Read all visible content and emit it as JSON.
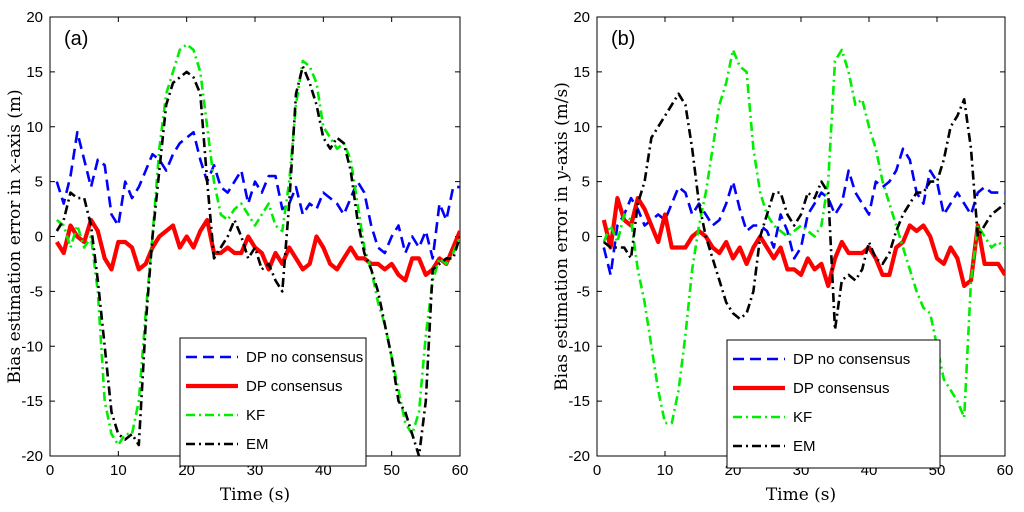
{
  "chart_data": [
    {
      "type": "line",
      "panel_label": "(a)",
      "xlabel": "Time (s)",
      "ylabel_parts": [
        "Bias estimation error in ",
        "x",
        "-axis (m)"
      ],
      "xlim": [
        0,
        60
      ],
      "ylim": [
        -20,
        20
      ],
      "xticks": [
        0,
        10,
        20,
        30,
        40,
        50,
        60
      ],
      "yticks": [
        -20,
        -15,
        -10,
        -5,
        0,
        5,
        10,
        15,
        20
      ],
      "legend_position": "bottom-right",
      "series": [
        {
          "name": "DP no consensus",
          "color": "#0000ff",
          "style": "dashed",
          "x": [
            1,
            2,
            3,
            4,
            5,
            6,
            7,
            8,
            9,
            10,
            11,
            12,
            13,
            14,
            15,
            16,
            17,
            18,
            19,
            20,
            21,
            22,
            23,
            24,
            25,
            26,
            27,
            28,
            29,
            30,
            31,
            32,
            33,
            34,
            35,
            36,
            37,
            38,
            39,
            40,
            41,
            42,
            43,
            44,
            45,
            46,
            47,
            48,
            49,
            50,
            51,
            52,
            53,
            54,
            55,
            56,
            57,
            58,
            59,
            60
          ],
          "y": [
            5,
            3,
            5.5,
            9.5,
            7,
            4.5,
            7,
            6.5,
            2,
            1,
            5,
            3.5,
            4.5,
            6,
            7.5,
            7,
            6,
            7.5,
            8.5,
            9,
            9.5,
            7,
            5,
            6.5,
            4.5,
            4,
            5,
            6,
            3,
            5,
            4,
            5.5,
            5.5,
            2.5,
            3,
            4.5,
            2,
            3,
            2.5,
            4,
            3.5,
            3,
            2,
            3.5,
            5,
            4,
            1,
            -1,
            -1.5,
            0,
            1,
            -1.5,
            0,
            -1,
            0.5,
            -2,
            3,
            1.5,
            4.5,
            4.5
          ]
        },
        {
          "name": "DP consensus",
          "color": "#ff0000",
          "style": "solid",
          "x": [
            1,
            2,
            3,
            4,
            5,
            6,
            7,
            8,
            9,
            10,
            11,
            12,
            13,
            14,
            15,
            16,
            17,
            18,
            19,
            20,
            21,
            22,
            23,
            24,
            25,
            26,
            27,
            28,
            29,
            30,
            31,
            32,
            33,
            34,
            35,
            36,
            37,
            38,
            39,
            40,
            41,
            42,
            43,
            44,
            45,
            46,
            47,
            48,
            49,
            50,
            51,
            52,
            53,
            54,
            55,
            56,
            57,
            58,
            59,
            60
          ],
          "y": [
            -0.5,
            -1.5,
            1,
            0,
            -0.5,
            1.5,
            0.5,
            -2,
            -3,
            -0.5,
            -0.5,
            -1,
            -3,
            -2.5,
            -1,
            0,
            0.5,
            1,
            -1,
            0,
            -1,
            0.5,
            1.5,
            -1.5,
            -1.5,
            -1,
            -1.5,
            -1.5,
            0,
            -1,
            -1.5,
            -3,
            -1.5,
            -2.5,
            -1,
            -2,
            -3,
            -2.5,
            0,
            -1,
            -2.5,
            -3,
            -2,
            -1,
            -2,
            -2,
            -2.5,
            -2.5,
            -3,
            -2.5,
            -3.5,
            -4,
            -2,
            -2,
            -3.5,
            -3,
            -2,
            -2.5,
            -1,
            0.5
          ]
        },
        {
          "name": "KF",
          "color": "#00ee00",
          "style": "dashdot",
          "x": [
            1,
            2,
            3,
            4,
            5,
            6,
            7,
            8,
            9,
            10,
            11,
            12,
            13,
            14,
            15,
            16,
            17,
            18,
            19,
            20,
            21,
            22,
            23,
            24,
            25,
            26,
            27,
            28,
            29,
            30,
            31,
            32,
            33,
            34,
            35,
            36,
            37,
            38,
            39,
            40,
            41,
            42,
            43,
            44,
            45,
            46,
            47,
            48,
            49,
            50,
            51,
            52,
            53,
            54,
            55,
            56,
            57,
            58,
            59,
            60
          ],
          "y": [
            1.5,
            1,
            -1,
            1,
            -1,
            0,
            -5,
            -15,
            -18,
            -19,
            -18,
            -18,
            -15,
            -7,
            0,
            8,
            13,
            15,
            17,
            17.5,
            17,
            15,
            10,
            5,
            2,
            1.5,
            2.5,
            3,
            2,
            1,
            2,
            3,
            1,
            0.5,
            5,
            12,
            16,
            15.5,
            14,
            10,
            9,
            8,
            8.5,
            7,
            3,
            -1,
            -3,
            -6,
            -8,
            -11,
            -14,
            -17,
            -18,
            -16,
            -9,
            -4,
            -2,
            -2.5,
            -1.5,
            0
          ]
        },
        {
          "name": "EM",
          "color": "#000000",
          "style": "dashdot",
          "x": [
            1,
            2,
            3,
            4,
            5,
            6,
            7,
            8,
            9,
            10,
            11,
            12,
            13,
            14,
            15,
            16,
            17,
            18,
            19,
            20,
            21,
            22,
            23,
            24,
            25,
            26,
            27,
            28,
            29,
            30,
            31,
            32,
            33,
            34,
            35,
            36,
            37,
            38,
            39,
            40,
            41,
            42,
            43,
            44,
            45,
            46,
            47,
            48,
            49,
            50,
            51,
            52,
            53,
            54,
            55,
            56,
            57,
            58,
            59,
            60
          ],
          "y": [
            0.5,
            1.5,
            4,
            3.5,
            3.5,
            1,
            -4,
            -10,
            -16,
            -18,
            -18.5,
            -18,
            -19,
            -8,
            0,
            6,
            12,
            14,
            14.5,
            15,
            14.5,
            13,
            5,
            -2,
            -1,
            0,
            1.5,
            0,
            -2,
            -1,
            -3,
            -2.5,
            -4,
            -5,
            3,
            13,
            15.5,
            14,
            12,
            9,
            8,
            9,
            8.5,
            6,
            1.5,
            -1.5,
            -3,
            -5,
            -8,
            -11,
            -15,
            -16,
            -18,
            -20,
            -15,
            -3,
            -2.5,
            -2,
            -2,
            0
          ]
        }
      ]
    },
    {
      "type": "line",
      "panel_label": "(b)",
      "xlabel": "Time (s)",
      "ylabel_parts": [
        "Bias estimation error in ",
        "y",
        "-axis (m/s)"
      ],
      "xlim": [
        0,
        60
      ],
      "ylim": [
        -20,
        20
      ],
      "xticks": [
        0,
        10,
        20,
        30,
        40,
        50,
        60
      ],
      "yticks": [
        -20,
        -15,
        -10,
        -5,
        0,
        5,
        10,
        15,
        20
      ],
      "legend_position": "bottom-right",
      "series": [
        {
          "name": "DP no consensus",
          "color": "#0000ff",
          "style": "dashed",
          "x": [
            1,
            2,
            3,
            4,
            5,
            6,
            7,
            8,
            9,
            10,
            11,
            12,
            13,
            14,
            15,
            16,
            17,
            18,
            19,
            20,
            21,
            22,
            23,
            24,
            25,
            26,
            27,
            28,
            29,
            30,
            31,
            32,
            33,
            34,
            35,
            36,
            37,
            38,
            39,
            40,
            41,
            42,
            43,
            44,
            45,
            46,
            47,
            48,
            49,
            50,
            51,
            52,
            53,
            54,
            55,
            56,
            57,
            58,
            59,
            60
          ],
          "y": [
            -1,
            -3.5,
            1,
            2,
            3.5,
            2.5,
            1,
            1.5,
            2,
            1.5,
            3,
            4.5,
            4,
            2,
            3,
            2,
            1,
            1.5,
            3,
            5,
            2.5,
            0.5,
            1,
            1,
            0.5,
            -1,
            2,
            0.5,
            -2,
            -1,
            2,
            3,
            4,
            3.5,
            2,
            3,
            6,
            4,
            3,
            2,
            5,
            4.5,
            5,
            6,
            8,
            7,
            4,
            3,
            6,
            5,
            2,
            3,
            4,
            3,
            2,
            4,
            4.5,
            4,
            4,
            4
          ]
        },
        {
          "name": "DP consensus",
          "color": "#ff0000",
          "style": "solid",
          "x": [
            1,
            2,
            3,
            4,
            5,
            6,
            7,
            8,
            9,
            10,
            11,
            12,
            13,
            14,
            15,
            16,
            17,
            18,
            19,
            20,
            21,
            22,
            23,
            24,
            25,
            26,
            27,
            28,
            29,
            30,
            31,
            32,
            33,
            34,
            35,
            36,
            37,
            38,
            39,
            40,
            41,
            42,
            43,
            44,
            45,
            46,
            47,
            48,
            49,
            50,
            51,
            52,
            53,
            54,
            55,
            56,
            57,
            58,
            59,
            60
          ],
          "y": [
            1.5,
            -1,
            3.5,
            1.5,
            1,
            3.5,
            2.5,
            1,
            -0.5,
            2,
            -1,
            -1,
            -1,
            0,
            0.5,
            0,
            -1,
            -1.5,
            -0.5,
            -2,
            -1,
            -2.5,
            -1,
            0,
            -1,
            -2,
            -1,
            -3,
            -3,
            -3.5,
            -2,
            -3,
            -2.5,
            -4.5,
            -2,
            -0.5,
            -1.5,
            -1.5,
            -1.5,
            -1,
            -2,
            -3.5,
            -3.5,
            -1,
            -0.5,
            1,
            0.5,
            1,
            0,
            -2,
            -2.5,
            -1,
            -2,
            -4.5,
            -4,
            1,
            -2.5,
            -2.5,
            -2.5,
            -3.5
          ]
        },
        {
          "name": "KF",
          "color": "#00ee00",
          "style": "dashdot",
          "x": [
            1,
            2,
            3,
            4,
            5,
            6,
            7,
            8,
            9,
            10,
            11,
            12,
            13,
            14,
            15,
            16,
            17,
            18,
            19,
            20,
            21,
            22,
            23,
            24,
            25,
            26,
            27,
            28,
            29,
            30,
            31,
            32,
            33,
            34,
            35,
            36,
            37,
            38,
            39,
            40,
            41,
            42,
            43,
            44,
            45,
            46,
            47,
            48,
            49,
            50,
            51,
            52,
            53,
            54,
            55,
            56,
            57,
            58,
            59,
            60
          ],
          "y": [
            -0.5,
            1,
            -0.5,
            2,
            1.5,
            -3,
            -6,
            -10,
            -14,
            -17,
            -17,
            -14,
            -9,
            -3,
            1,
            4,
            8,
            12,
            14,
            17,
            15.5,
            15,
            8,
            4,
            2,
            1,
            0.5,
            0,
            0.5,
            1,
            0.5,
            0,
            1,
            5,
            16,
            17,
            15,
            12,
            12.5,
            10,
            8,
            5,
            3,
            1,
            -1,
            -3,
            -5,
            -6.5,
            -7,
            -10,
            -13,
            -14,
            -15,
            -16.5,
            -4,
            1,
            0,
            -1,
            -0.5,
            -1
          ]
        },
        {
          "name": "EM",
          "color": "#000000",
          "style": "dashdot",
          "x": [
            1,
            2,
            3,
            4,
            5,
            6,
            7,
            8,
            9,
            10,
            11,
            12,
            13,
            14,
            15,
            16,
            17,
            18,
            19,
            20,
            21,
            22,
            23,
            24,
            25,
            26,
            27,
            28,
            29,
            30,
            31,
            32,
            33,
            34,
            35,
            36,
            37,
            38,
            39,
            40,
            41,
            42,
            43,
            44,
            45,
            46,
            47,
            48,
            49,
            50,
            51,
            52,
            53,
            54,
            55,
            56,
            57,
            58,
            59,
            60
          ],
          "y": [
            -0.5,
            -1,
            -1,
            -1,
            -2,
            3,
            5,
            9,
            10,
            11,
            12,
            13,
            12,
            8,
            3,
            0,
            -2,
            -4,
            -6,
            -7,
            -7.5,
            -7,
            -5,
            0,
            2,
            4,
            4,
            2,
            1,
            2,
            4,
            3.5,
            5,
            4,
            -8.5,
            -4,
            -3.5,
            -4,
            -3,
            -0.5,
            -2,
            -2.5,
            -1.5,
            0.5,
            2,
            3,
            4,
            4,
            5,
            5,
            7,
            10,
            11,
            12.5,
            8,
            0,
            1,
            2,
            2.5,
            3
          ]
        }
      ]
    }
  ]
}
